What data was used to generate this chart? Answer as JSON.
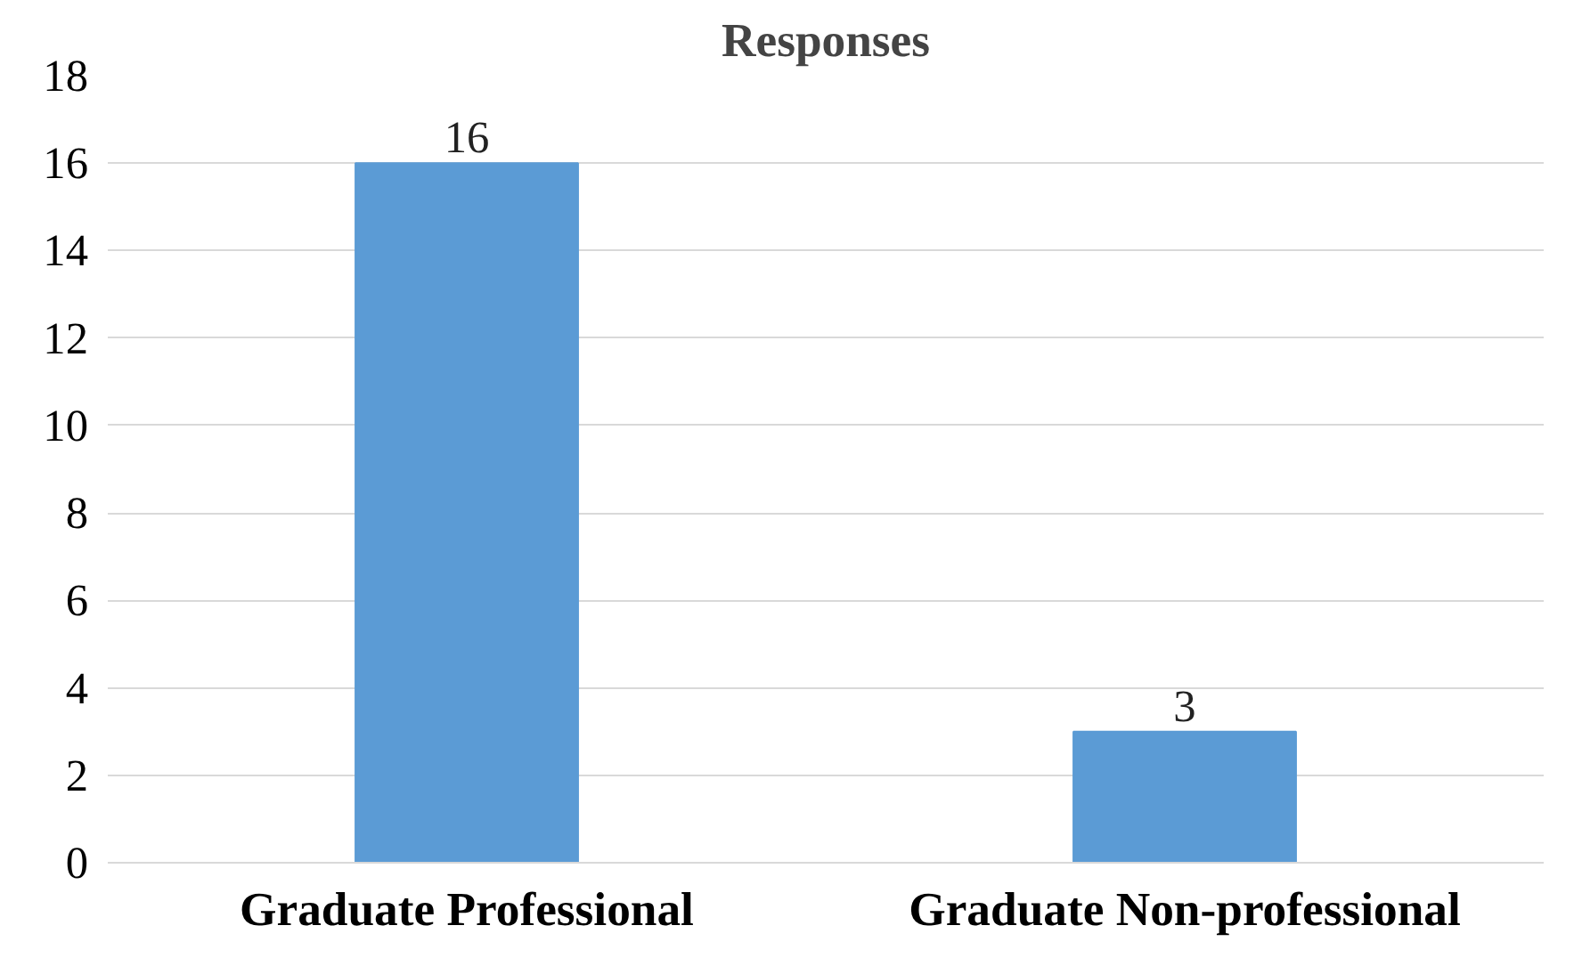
{
  "chart_data": {
    "type": "bar",
    "title": "Responses",
    "categories": [
      "Graduate Professional",
      "Graduate Non-professional"
    ],
    "values": [
      16,
      3
    ],
    "color": "#5b9bd5",
    "ylim": [
      0,
      18
    ],
    "yticks": [
      0,
      2,
      4,
      6,
      8,
      10,
      12,
      14,
      16,
      18
    ],
    "grid": "y",
    "data_labels": true
  }
}
